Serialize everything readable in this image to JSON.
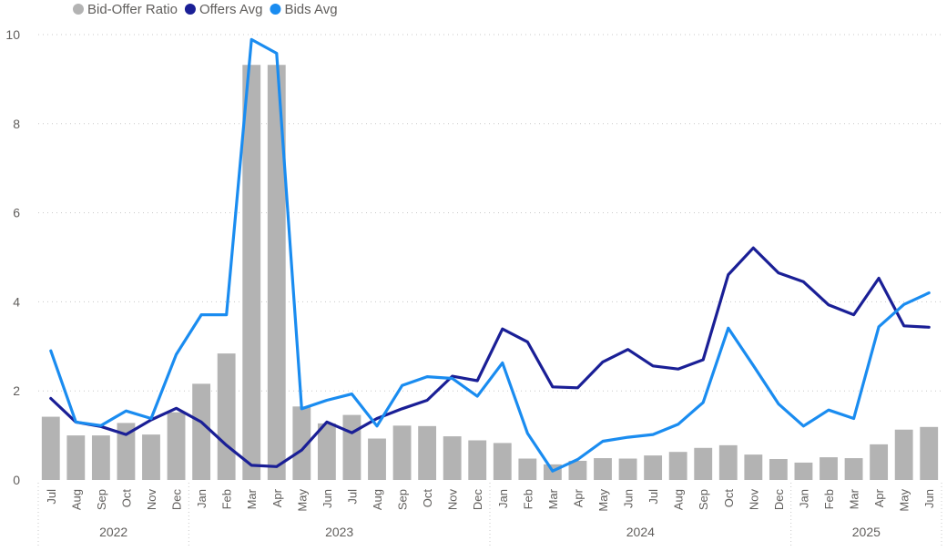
{
  "chart_data": {
    "type": "bar+line",
    "categories": [
      "Jul",
      "Aug",
      "Sep",
      "Oct",
      "Nov",
      "Dec",
      "Jan",
      "Feb",
      "Mar",
      "Apr",
      "May",
      "Jun",
      "Jul",
      "Aug",
      "Sep",
      "Oct",
      "Nov",
      "Dec",
      "Jan",
      "Feb",
      "Mar",
      "Apr",
      "May",
      "Jun",
      "Jul",
      "Aug",
      "Sep",
      "Oct",
      "Nov",
      "Dec",
      "Jan",
      "Feb",
      "Mar",
      "Apr",
      "May",
      "Jun"
    ],
    "years": [
      {
        "label": "2022",
        "start": 0,
        "count": 6
      },
      {
        "label": "2023",
        "start": 6,
        "count": 12
      },
      {
        "label": "2024",
        "start": 18,
        "count": 12
      },
      {
        "label": "2025",
        "start": 30,
        "count": 6
      }
    ],
    "ylim": [
      0,
      10
    ],
    "yticks": [
      0,
      2,
      4,
      6,
      8,
      10
    ],
    "grid": true,
    "legend_position": "top-left",
    "series": [
      {
        "name": "Bid-Offer Ratio",
        "kind": "bar",
        "color": "#B3B3B3",
        "values": [
          1.42,
          1.0,
          1.0,
          1.28,
          1.02,
          1.52,
          2.16,
          2.84,
          9.32,
          9.32,
          1.65,
          1.27,
          1.46,
          0.93,
          1.22,
          1.21,
          0.98,
          0.89,
          0.83,
          0.48,
          0.35,
          0.43,
          0.49,
          0.48,
          0.55,
          0.63,
          0.72,
          0.78,
          0.57,
          0.47,
          0.39,
          0.51,
          0.49,
          0.8,
          1.13,
          1.19
        ]
      },
      {
        "name": "Offers Avg",
        "kind": "line",
        "color": "#1A1F96",
        "values": [
          1.83,
          1.3,
          1.2,
          1.02,
          1.35,
          1.61,
          1.3,
          0.78,
          0.33,
          0.3,
          0.67,
          1.3,
          1.06,
          1.38,
          1.6,
          1.79,
          2.33,
          2.23,
          3.39,
          3.1,
          2.09,
          2.07,
          2.65,
          2.93,
          2.56,
          2.49,
          2.7,
          4.61,
          5.21,
          4.65,
          4.45,
          3.93,
          3.71,
          4.53,
          3.46,
          3.43
        ]
      },
      {
        "name": "Bids Avg",
        "kind": "line",
        "color": "#1A8CF0",
        "values": [
          2.9,
          1.3,
          1.22,
          1.55,
          1.38,
          2.82,
          3.71,
          3.71,
          9.89,
          9.58,
          1.6,
          1.79,
          1.93,
          1.21,
          2.12,
          2.32,
          2.28,
          1.88,
          2.63,
          1.05,
          0.2,
          0.46,
          0.87,
          0.96,
          1.02,
          1.25,
          1.74,
          3.41,
          2.57,
          1.71,
          1.21,
          1.57,
          1.38,
          3.44,
          3.94,
          4.2
        ]
      }
    ]
  }
}
